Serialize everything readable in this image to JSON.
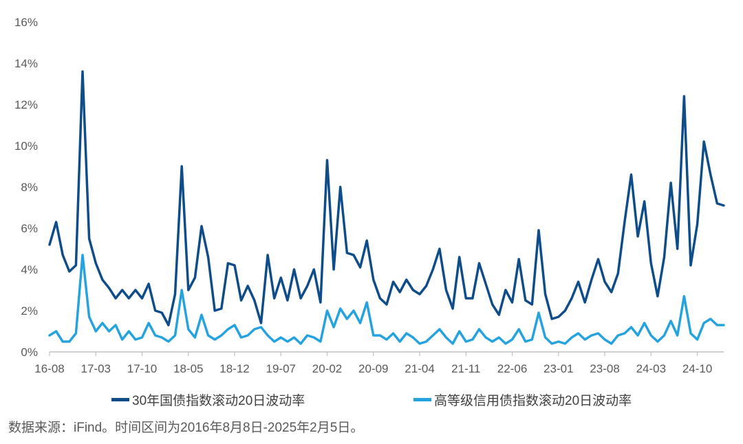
{
  "chart_data": {
    "type": "line",
    "title": "",
    "xlabel": "",
    "ylabel": "",
    "ylim": [
      0,
      16
    ],
    "y_ticks": [
      "0%",
      "2%",
      "4%",
      "6%",
      "8%",
      "10%",
      "12%",
      "14%",
      "16%"
    ],
    "x_range": [
      "2016-08",
      "2025-02"
    ],
    "x_ticks": [
      "16-08",
      "17-03",
      "17-10",
      "18-05",
      "18-12",
      "19-07",
      "20-02",
      "20-09",
      "21-04",
      "21-11",
      "22-06",
      "23-01",
      "23-08",
      "24-03",
      "24-10"
    ],
    "grid": false,
    "legend_position": "bottom",
    "series": [
      {
        "name": "30年国债指数滚动20日波动率",
        "color": "#0f4c8a",
        "points": [
          [
            "2016-08",
            5.2
          ],
          [
            "2016-09",
            6.3
          ],
          [
            "2016-10",
            4.7
          ],
          [
            "2016-11",
            3.9
          ],
          [
            "2016-12",
            4.2
          ],
          [
            "2017-01",
            13.6
          ],
          [
            "2017-02",
            5.5
          ],
          [
            "2017-03",
            4.3
          ],
          [
            "2017-04",
            3.5
          ],
          [
            "2017-05",
            3.1
          ],
          [
            "2017-06",
            2.6
          ],
          [
            "2017-07",
            3.0
          ],
          [
            "2017-08",
            2.6
          ],
          [
            "2017-09",
            3.0
          ],
          [
            "2017-10",
            2.6
          ],
          [
            "2017-11",
            3.3
          ],
          [
            "2017-12",
            2.0
          ],
          [
            "2018-01",
            1.9
          ],
          [
            "2018-02",
            1.3
          ],
          [
            "2018-03",
            2.8
          ],
          [
            "2018-04",
            9.0
          ],
          [
            "2018-05",
            3.0
          ],
          [
            "2018-06",
            3.6
          ],
          [
            "2018-07",
            6.1
          ],
          [
            "2018-08",
            4.6
          ],
          [
            "2018-09",
            2.0
          ],
          [
            "2018-10",
            2.1
          ],
          [
            "2018-11",
            4.3
          ],
          [
            "2018-12",
            4.2
          ],
          [
            "2019-01",
            2.5
          ],
          [
            "2019-02",
            3.2
          ],
          [
            "2019-03",
            2.5
          ],
          [
            "2019-04",
            1.4
          ],
          [
            "2019-05",
            4.7
          ],
          [
            "2019-06",
            2.6
          ],
          [
            "2019-07",
            3.6
          ],
          [
            "2019-08",
            2.5
          ],
          [
            "2019-09",
            4.0
          ],
          [
            "2019-10",
            2.6
          ],
          [
            "2019-11",
            3.2
          ],
          [
            "2019-12",
            4.0
          ],
          [
            "2020-01",
            2.4
          ],
          [
            "2020-02",
            9.3
          ],
          [
            "2020-03",
            4.0
          ],
          [
            "2020-04",
            8.0
          ],
          [
            "2020-05",
            4.8
          ],
          [
            "2020-06",
            4.7
          ],
          [
            "2020-07",
            4.1
          ],
          [
            "2020-08",
            5.4
          ],
          [
            "2020-09",
            3.5
          ],
          [
            "2020-10",
            2.6
          ],
          [
            "2020-11",
            2.3
          ],
          [
            "2020-12",
            3.4
          ],
          [
            "2021-01",
            2.9
          ],
          [
            "2021-02",
            3.5
          ],
          [
            "2021-03",
            3.0
          ],
          [
            "2021-04",
            2.8
          ],
          [
            "2021-05",
            3.2
          ],
          [
            "2021-06",
            4.0
          ],
          [
            "2021-07",
            5.0
          ],
          [
            "2021-08",
            3.0
          ],
          [
            "2021-09",
            2.1
          ],
          [
            "2021-10",
            4.6
          ],
          [
            "2021-11",
            2.6
          ],
          [
            "2021-12",
            2.6
          ],
          [
            "2022-01",
            4.3
          ],
          [
            "2022-02",
            3.3
          ],
          [
            "2022-03",
            2.3
          ],
          [
            "2022-04",
            1.8
          ],
          [
            "2022-05",
            3.0
          ],
          [
            "2022-06",
            2.4
          ],
          [
            "2022-07",
            4.5
          ],
          [
            "2022-08",
            2.5
          ],
          [
            "2022-09",
            2.3
          ],
          [
            "2022-10",
            5.9
          ],
          [
            "2022-11",
            2.8
          ],
          [
            "2022-12",
            1.6
          ],
          [
            "2023-01",
            1.7
          ],
          [
            "2023-02",
            2.0
          ],
          [
            "2023-03",
            2.6
          ],
          [
            "2023-04",
            3.4
          ],
          [
            "2023-05",
            2.4
          ],
          [
            "2023-06",
            3.5
          ],
          [
            "2023-07",
            4.5
          ],
          [
            "2023-08",
            3.4
          ],
          [
            "2023-09",
            2.9
          ],
          [
            "2023-10",
            3.8
          ],
          [
            "2023-11",
            6.3
          ],
          [
            "2023-12",
            8.6
          ],
          [
            "2024-01",
            5.6
          ],
          [
            "2024-02",
            7.3
          ],
          [
            "2024-03",
            4.3
          ],
          [
            "2024-04",
            2.7
          ],
          [
            "2024-05",
            4.6
          ],
          [
            "2024-06",
            8.2
          ],
          [
            "2024-07",
            5.0
          ],
          [
            "2024-08",
            12.4
          ],
          [
            "2024-09",
            4.2
          ],
          [
            "2024-10",
            6.2
          ],
          [
            "2024-11",
            10.2
          ],
          [
            "2024-12",
            8.6
          ],
          [
            "2025-01",
            7.2
          ],
          [
            "2025-02",
            7.1
          ]
        ]
      },
      {
        "name": "高等级信用债指数滚动20日波动率",
        "color": "#25a3de",
        "points": [
          [
            "2016-08",
            0.8
          ],
          [
            "2016-09",
            1.0
          ],
          [
            "2016-10",
            0.5
          ],
          [
            "2016-11",
            0.5
          ],
          [
            "2016-12",
            0.9
          ],
          [
            "2017-01",
            4.7
          ],
          [
            "2017-02",
            1.7
          ],
          [
            "2017-03",
            1.0
          ],
          [
            "2017-04",
            1.4
          ],
          [
            "2017-05",
            1.0
          ],
          [
            "2017-06",
            1.3
          ],
          [
            "2017-07",
            0.6
          ],
          [
            "2017-08",
            1.0
          ],
          [
            "2017-09",
            0.6
          ],
          [
            "2017-10",
            0.7
          ],
          [
            "2017-11",
            1.4
          ],
          [
            "2017-12",
            0.8
          ],
          [
            "2018-01",
            0.7
          ],
          [
            "2018-02",
            0.5
          ],
          [
            "2018-03",
            0.8
          ],
          [
            "2018-04",
            3.0
          ],
          [
            "2018-05",
            1.1
          ],
          [
            "2018-06",
            0.7
          ],
          [
            "2018-07",
            1.8
          ],
          [
            "2018-08",
            0.8
          ],
          [
            "2018-09",
            0.6
          ],
          [
            "2018-10",
            0.8
          ],
          [
            "2018-11",
            1.1
          ],
          [
            "2018-12",
            1.3
          ],
          [
            "2019-01",
            0.7
          ],
          [
            "2019-02",
            0.8
          ],
          [
            "2019-03",
            1.1
          ],
          [
            "2019-04",
            1.2
          ],
          [
            "2019-05",
            0.8
          ],
          [
            "2019-06",
            0.5
          ],
          [
            "2019-07",
            0.7
          ],
          [
            "2019-08",
            0.5
          ],
          [
            "2019-09",
            0.7
          ],
          [
            "2019-10",
            0.4
          ],
          [
            "2019-11",
            0.8
          ],
          [
            "2019-12",
            0.7
          ],
          [
            "2020-01",
            0.5
          ],
          [
            "2020-02",
            2.0
          ],
          [
            "2020-03",
            1.2
          ],
          [
            "2020-04",
            2.1
          ],
          [
            "2020-05",
            1.6
          ],
          [
            "2020-06",
            2.0
          ],
          [
            "2020-07",
            1.4
          ],
          [
            "2020-08",
            2.4
          ],
          [
            "2020-09",
            0.8
          ],
          [
            "2020-10",
            0.8
          ],
          [
            "2020-11",
            0.6
          ],
          [
            "2020-12",
            0.9
          ],
          [
            "2021-01",
            0.5
          ],
          [
            "2021-02",
            0.9
          ],
          [
            "2021-03",
            0.7
          ],
          [
            "2021-04",
            0.4
          ],
          [
            "2021-05",
            0.5
          ],
          [
            "2021-06",
            0.8
          ],
          [
            "2021-07",
            1.1
          ],
          [
            "2021-08",
            0.7
          ],
          [
            "2021-09",
            0.4
          ],
          [
            "2021-10",
            1.0
          ],
          [
            "2021-11",
            0.5
          ],
          [
            "2021-12",
            0.6
          ],
          [
            "2022-01",
            1.1
          ],
          [
            "2022-02",
            0.7
          ],
          [
            "2022-03",
            0.5
          ],
          [
            "2022-04",
            0.7
          ],
          [
            "2022-05",
            0.4
          ],
          [
            "2022-06",
            0.6
          ],
          [
            "2022-07",
            1.1
          ],
          [
            "2022-08",
            0.5
          ],
          [
            "2022-09",
            0.6
          ],
          [
            "2022-10",
            1.9
          ],
          [
            "2022-11",
            0.7
          ],
          [
            "2022-12",
            0.4
          ],
          [
            "2023-01",
            0.5
          ],
          [
            "2023-02",
            0.4
          ],
          [
            "2023-03",
            0.7
          ],
          [
            "2023-04",
            0.9
          ],
          [
            "2023-05",
            0.6
          ],
          [
            "2023-06",
            0.8
          ],
          [
            "2023-07",
            0.9
          ],
          [
            "2023-08",
            0.6
          ],
          [
            "2023-09",
            0.4
          ],
          [
            "2023-10",
            0.8
          ],
          [
            "2023-11",
            0.9
          ],
          [
            "2023-12",
            1.2
          ],
          [
            "2024-01",
            0.8
          ],
          [
            "2024-02",
            1.4
          ],
          [
            "2024-03",
            0.8
          ],
          [
            "2024-04",
            0.5
          ],
          [
            "2024-05",
            0.8
          ],
          [
            "2024-06",
            1.5
          ],
          [
            "2024-07",
            0.8
          ],
          [
            "2024-08",
            2.7
          ],
          [
            "2024-09",
            0.9
          ],
          [
            "2024-10",
            0.6
          ],
          [
            "2024-11",
            1.4
          ],
          [
            "2024-12",
            1.6
          ],
          [
            "2025-01",
            1.3
          ],
          [
            "2025-02",
            1.3
          ]
        ]
      }
    ]
  },
  "source_note": "数据来源：iFind。时间区间为2016年8月8日-2025年2月5日。"
}
